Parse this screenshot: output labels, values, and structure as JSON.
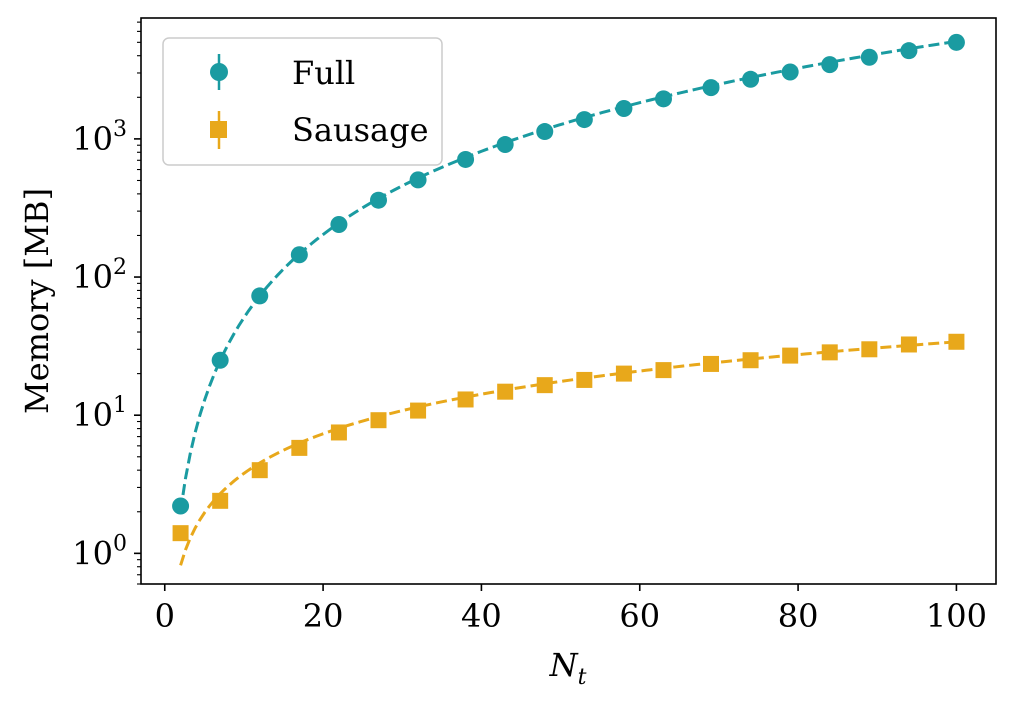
{
  "chart_data": {
    "type": "scatter",
    "title": "",
    "xlabel": "N",
    "xlabel_sub": "t",
    "ylabel": "Memory [MB]",
    "xscale": "linear",
    "yscale": "log",
    "xlim": [
      -3,
      105
    ],
    "ylim": [
      0.6,
      7500
    ],
    "xticks": [
      0,
      20,
      40,
      60,
      80,
      100
    ],
    "xtick_labels": [
      "0",
      "20",
      "40",
      "60",
      "80",
      "100"
    ],
    "yticks": [
      1,
      10,
      100,
      1000
    ],
    "ytick_labels": [
      {
        "base": "10",
        "exp": "0"
      },
      {
        "base": "10",
        "exp": "1"
      },
      {
        "base": "10",
        "exp": "2"
      },
      {
        "base": "10",
        "exp": "3"
      }
    ],
    "grid": false,
    "legend_position": "top-left",
    "series": [
      {
        "name": "Full",
        "color": "#1a9ba1",
        "marker": "circle",
        "x": [
          2,
          7,
          12,
          17,
          22,
          27,
          32,
          38,
          43,
          48,
          53,
          58,
          63,
          69,
          74,
          79,
          84,
          89,
          94,
          100
        ],
        "y": [
          2.2,
          25,
          73,
          145,
          240,
          360,
          505,
          710,
          910,
          1130,
          1380,
          1660,
          1950,
          2350,
          2700,
          3050,
          3450,
          3900,
          4350,
          5000
        ],
        "fit": {
          "style": "dashed",
          "a": 0.508,
          "p": 2.0,
          "x_range": [
            2,
            100
          ]
        }
      },
      {
        "name": "Sausage",
        "color": "#e8a81b",
        "marker": "square",
        "x": [
          2,
          7,
          12,
          17,
          22,
          27,
          32,
          38,
          43,
          48,
          53,
          58,
          63,
          69,
          74,
          79,
          84,
          89,
          94,
          100
        ],
        "y": [
          1.4,
          2.4,
          4.0,
          5.8,
          7.5,
          9.2,
          10.8,
          13.0,
          14.8,
          16.5,
          18.0,
          20.0,
          21.2,
          23.5,
          25.0,
          27.0,
          28.5,
          30.0,
          32.5,
          34.0
        ],
        "fit": {
          "style": "dashed",
          "a": 0.4235,
          "p": 0.952,
          "x_range": [
            2,
            100
          ]
        }
      }
    ]
  }
}
